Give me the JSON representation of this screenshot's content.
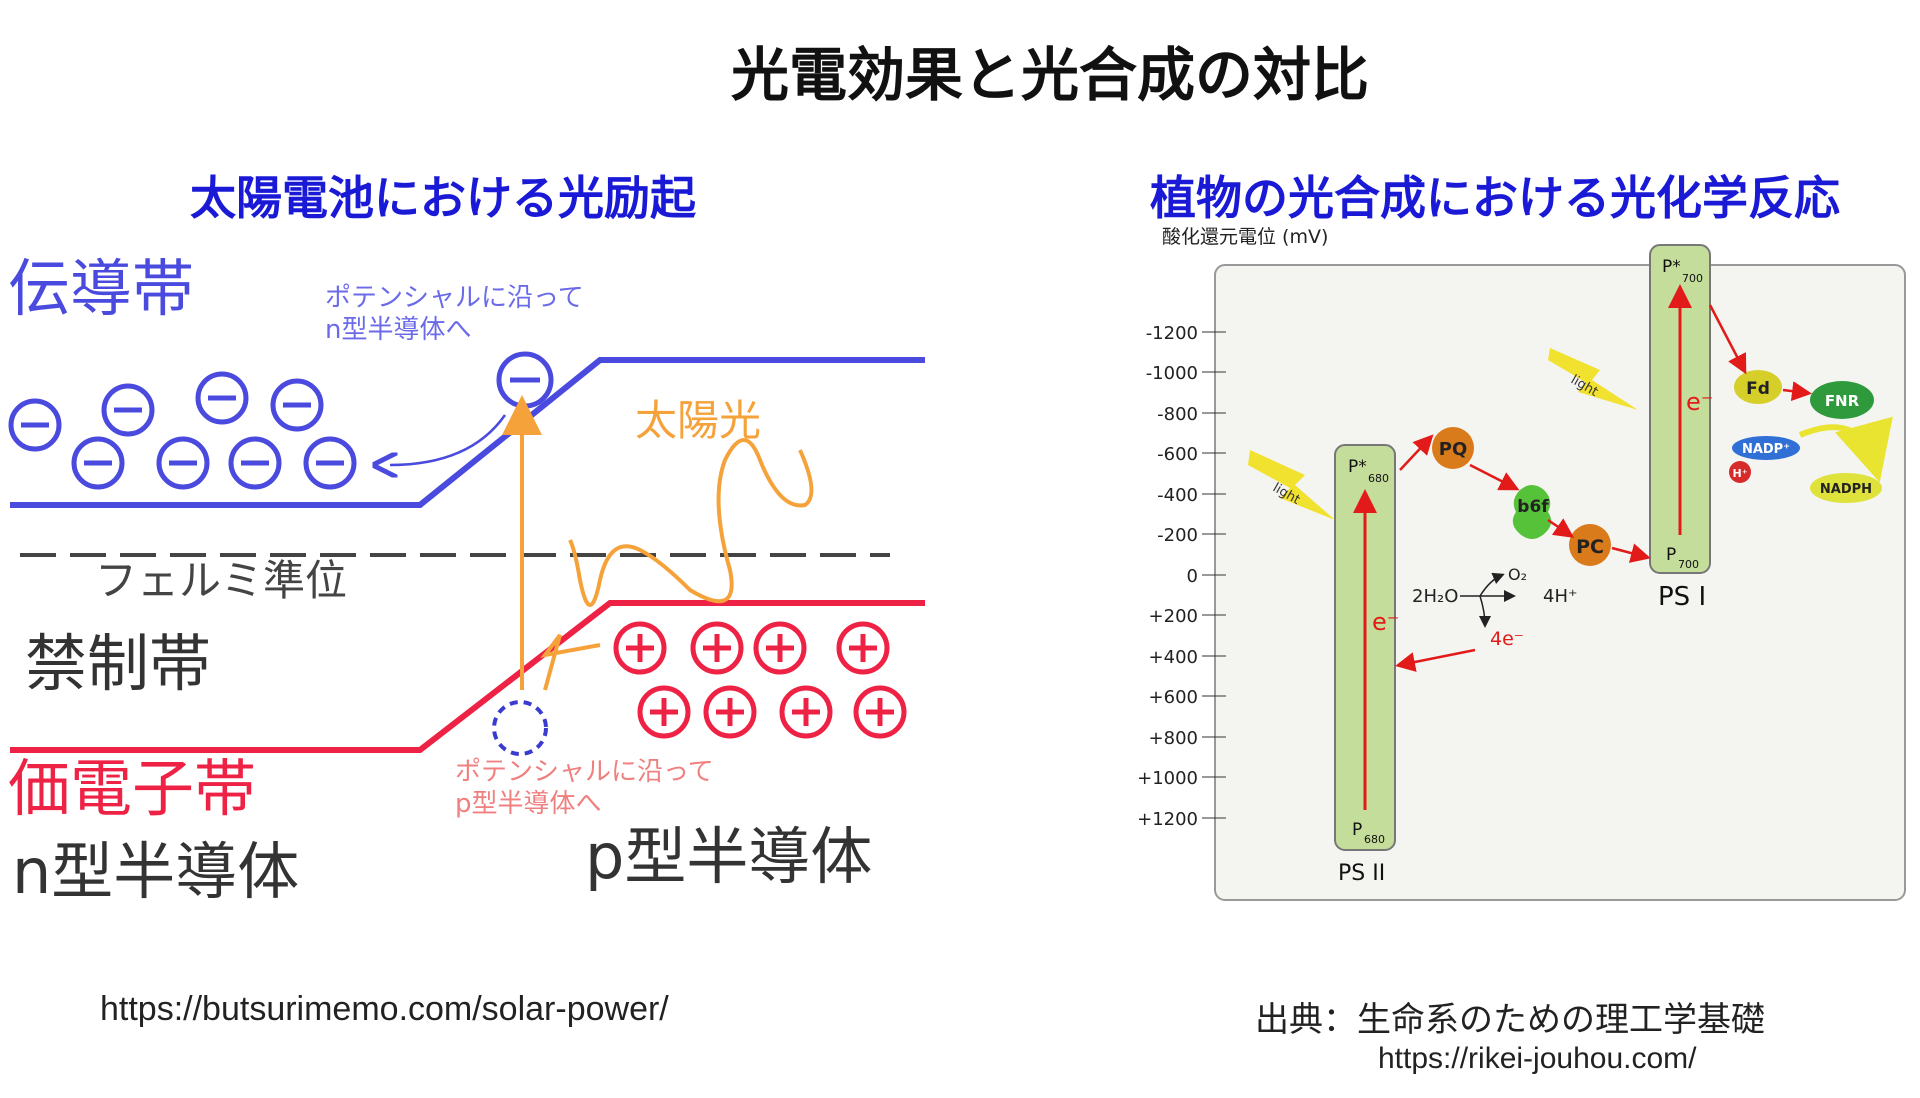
{
  "title": "光電効果と光合成の対比",
  "left": {
    "subtitle": "太陽電池における光励起",
    "labels": {
      "conduction_band": "伝導帯",
      "fermi_level": "フェルミ準位",
      "forbidden_band": "禁制帯",
      "valence_band": "価電子帯",
      "n_type": "n型半導体",
      "p_type": "p型半導体",
      "sunlight": "太陽光",
      "electron_note_line1": "ポテンシャルに沿って",
      "electron_note_line2": "n型半導体へ",
      "hole_note_line1": "ポテンシャルに沿って",
      "hole_note_line2": "p型半導体へ"
    },
    "source_url": "https://butsurimemo.com/solar-power/"
  },
  "right": {
    "subtitle": "植物の光合成における光化学反応",
    "axis_label": "酸化還元電位 (mV)",
    "ticks": [
      "-1200",
      "-1000",
      "-800",
      "-600",
      "-400",
      "-200",
      "0",
      "+200",
      "+400",
      "+600",
      "+800",
      "+1000",
      "+1200"
    ],
    "labels": {
      "p680_star": "P*",
      "p680_star_sub": "680",
      "p680": "P",
      "p680_sub": "680",
      "p700_star": "P*",
      "p700_star_sub": "700",
      "p700": "P",
      "p700_sub": "700",
      "electron_ps2": "e⁻",
      "electron_ps1": "e⁻",
      "ps2": "PS II",
      "ps1": "PS I",
      "pq": "PQ",
      "b6f": "b6f",
      "pc": "PC",
      "fd": "Fd",
      "fnr": "FNR",
      "nadp": "NADP⁺",
      "h": "H⁺",
      "nadph": "NADPH",
      "light1": "light",
      "light2": "light",
      "water": "2H₂O",
      "oxygen": "O₂",
      "protons": "4H⁺",
      "electrons": "4e⁻"
    },
    "source_label": "出典：生命系のための理工学基礎",
    "source_url": "https://rikei-jouhou.com/"
  },
  "colors": {
    "title_blue": "#1a1ad6",
    "band_blue": "#4a4adf",
    "band_red": "#ee2244",
    "sun_orange": "#f6a23a",
    "ps_green": "#c5dd9b",
    "arrow_red": "#e21a1a"
  }
}
